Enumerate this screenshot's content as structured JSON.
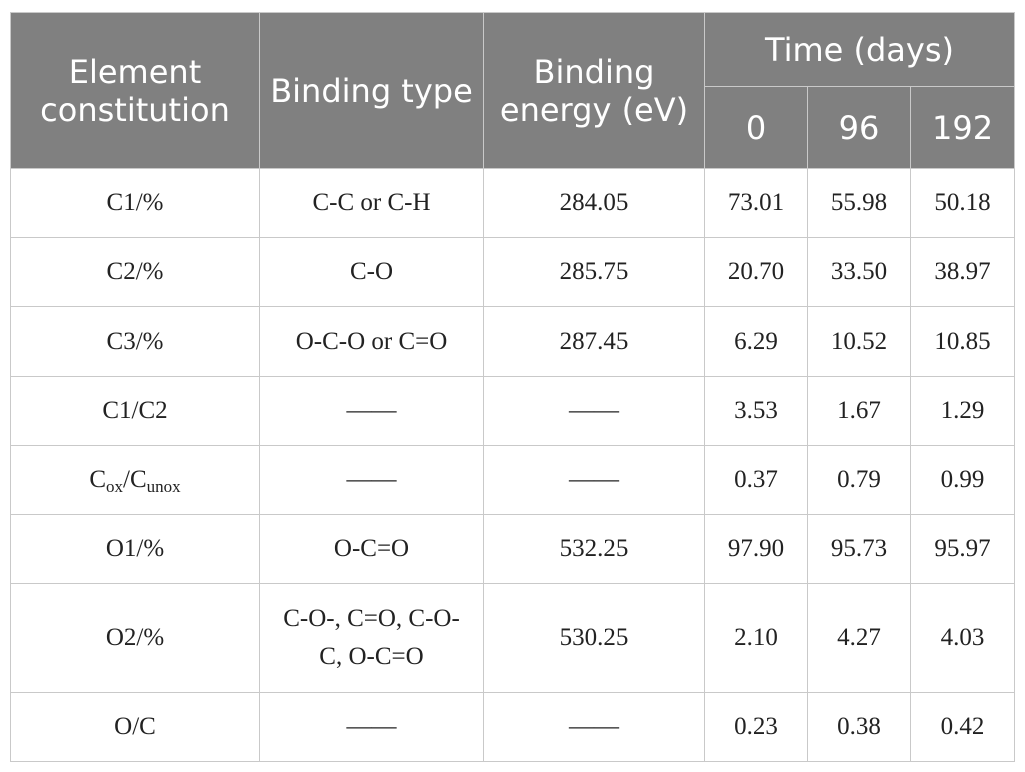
{
  "table": {
    "header": {
      "columns": [
        "Element constitution",
        "Binding type",
        "Binding energy (eV)"
      ],
      "group": "Time (days)",
      "subcolumns": [
        "0",
        "96",
        "192"
      ]
    },
    "rows": [
      [
        "C1/%",
        "C-C or C-H",
        "284.05",
        "73.01",
        "55.98",
        "50.18"
      ],
      [
        "C2/%",
        "C-O",
        "285.75",
        "20.70",
        "33.50",
        "38.97"
      ],
      [
        "C3/%",
        "O-C-O or C=O",
        "287.45",
        "6.29",
        "10.52",
        "10.85"
      ],
      [
        "C1/C2",
        "——",
        "——",
        "3.53",
        "1.67",
        "1.29"
      ],
      [
        {
          "segments": [
            {
              "text": "C"
            },
            {
              "text": "ox",
              "style": "sub"
            },
            {
              "text": "/C"
            },
            {
              "text": "unox",
              "style": "sub"
            }
          ]
        },
        "——",
        "——",
        "0.37",
        "0.79",
        "0.99"
      ],
      [
        "O1/%",
        "O-C=O",
        "532.25",
        "97.90",
        "95.73",
        "95.97"
      ],
      [
        "O2/%",
        "C-O-, C=O, C-O-C, O-C=O",
        "530.25",
        "2.10",
        "4.27",
        "4.03"
      ],
      [
        "O/C",
        "——",
        "——",
        "0.23",
        "0.38",
        "0.42"
      ]
    ]
  }
}
